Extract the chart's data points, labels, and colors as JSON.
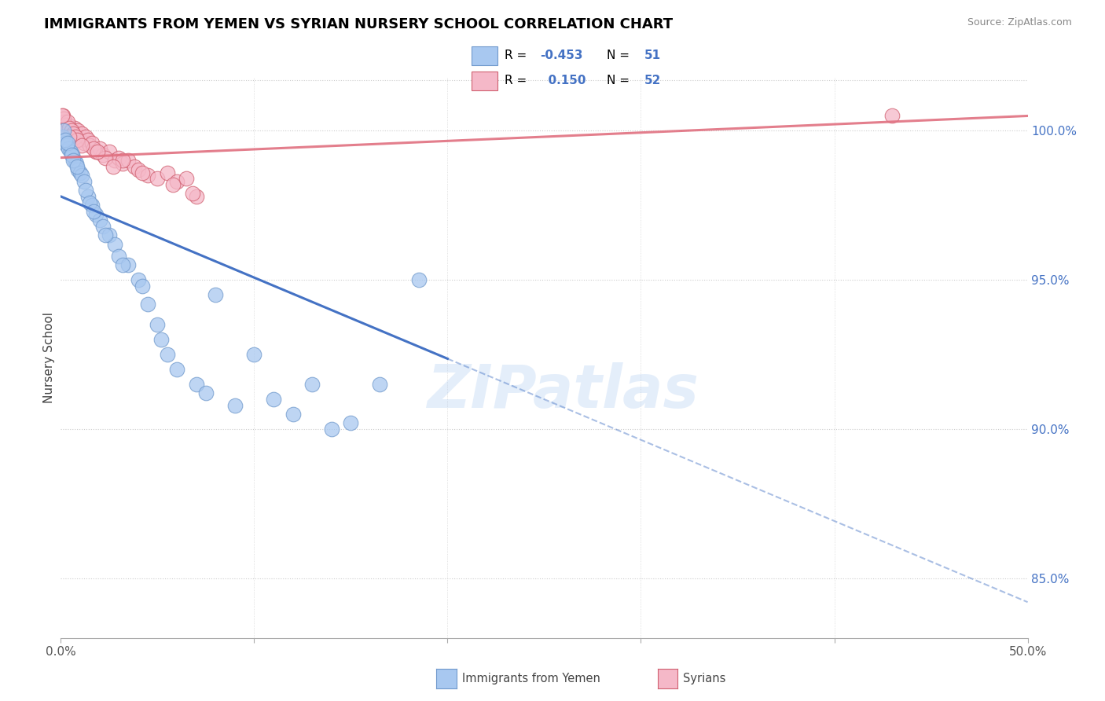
{
  "title": "IMMIGRANTS FROM YEMEN VS SYRIAN NURSERY SCHOOL CORRELATION CHART",
  "source": "Source: ZipAtlas.com",
  "ylabel": "Nursery School",
  "legend_entries": [
    {
      "label": "Immigrants from Yemen",
      "R": -0.453,
      "N": 51,
      "color": "#a8c8f0"
    },
    {
      "label": "Syrians",
      "R": 0.15,
      "N": 52,
      "color": "#f0a0b0"
    }
  ],
  "xmin": 0.0,
  "xmax": 50.0,
  "ymin": 83.0,
  "ymax": 101.8,
  "right_yticks": [
    85.0,
    90.0,
    95.0,
    100.0
  ],
  "watermark": "ZIPatlas",
  "blue_scatter_x": [
    0.1,
    0.2,
    0.3,
    0.4,
    0.5,
    0.6,
    0.7,
    0.8,
    0.9,
    1.0,
    1.1,
    1.2,
    1.4,
    1.6,
    1.8,
    2.0,
    2.2,
    2.5,
    2.8,
    3.0,
    3.5,
    4.0,
    4.2,
    5.0,
    5.2,
    5.5,
    6.0,
    7.0,
    7.5,
    8.0,
    9.0,
    10.0,
    11.0,
    12.0,
    13.0,
    14.0,
    15.0,
    16.5,
    0.15,
    0.25,
    0.35,
    0.55,
    0.65,
    0.85,
    1.3,
    1.5,
    1.7,
    2.3,
    3.2,
    4.5,
    18.5
  ],
  "blue_scatter_y": [
    99.8,
    99.6,
    99.5,
    99.4,
    99.3,
    99.2,
    99.0,
    98.9,
    98.7,
    98.6,
    98.5,
    98.3,
    97.8,
    97.5,
    97.2,
    97.0,
    96.8,
    96.5,
    96.2,
    95.8,
    95.5,
    95.0,
    94.8,
    93.5,
    93.0,
    92.5,
    92.0,
    91.5,
    91.2,
    94.5,
    90.8,
    92.5,
    91.0,
    90.5,
    91.5,
    90.0,
    90.2,
    91.5,
    100.0,
    99.7,
    99.6,
    99.2,
    99.0,
    98.8,
    98.0,
    97.6,
    97.3,
    96.5,
    95.5,
    94.2,
    95.0
  ],
  "pink_scatter_x": [
    0.1,
    0.2,
    0.3,
    0.4,
    0.5,
    0.6,
    0.7,
    0.8,
    0.9,
    1.0,
    1.1,
    1.2,
    1.3,
    1.4,
    1.5,
    1.6,
    1.8,
    2.0,
    2.2,
    2.5,
    2.8,
    3.0,
    3.2,
    3.5,
    3.8,
    4.0,
    4.5,
    5.0,
    5.5,
    6.0,
    6.5,
    7.0,
    0.15,
    0.25,
    0.35,
    0.45,
    0.55,
    0.65,
    0.75,
    0.85,
    1.7,
    2.3,
    0.05,
    1.9,
    3.2,
    4.2,
    5.8,
    6.8,
    0.45,
    1.1,
    2.7,
    43.0
  ],
  "pink_scatter_y": [
    100.5,
    100.3,
    100.1,
    100.2,
    100.0,
    99.9,
    100.1,
    99.8,
    100.0,
    99.7,
    99.9,
    99.6,
    99.8,
    99.7,
    99.5,
    99.6,
    99.3,
    99.4,
    99.2,
    99.3,
    99.0,
    99.1,
    98.9,
    99.0,
    98.8,
    98.7,
    98.5,
    98.4,
    98.6,
    98.3,
    98.4,
    97.8,
    100.4,
    100.2,
    100.3,
    100.1,
    100.0,
    99.9,
    99.8,
    99.7,
    99.4,
    99.1,
    100.5,
    99.3,
    99.0,
    98.6,
    98.2,
    97.9,
    99.8,
    99.5,
    98.8,
    100.5
  ],
  "blue_line_x0": 0.0,
  "blue_line_y0": 97.8,
  "blue_line_x1": 50.0,
  "blue_line_y1": 84.2,
  "blue_solid_end": 20.0,
  "pink_line_x0": 0.0,
  "pink_line_y0": 99.1,
  "pink_line_x1": 50.0,
  "pink_line_y1": 100.5,
  "blue_line_color": "#4472c4",
  "pink_line_color": "#e07080",
  "dot_blue_color": "#a8c8f0",
  "dot_pink_color": "#f5b8c8",
  "dot_blue_edge": "#7099cc",
  "dot_pink_edge": "#d06070",
  "background_color": "#ffffff",
  "grid_color": "#cccccc",
  "title_color": "#000000",
  "right_label_color": "#4472c4",
  "dot_size": 180
}
